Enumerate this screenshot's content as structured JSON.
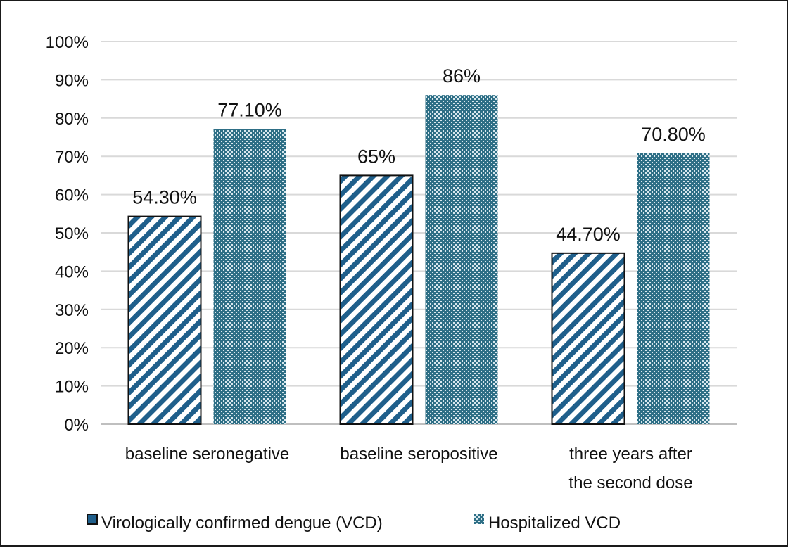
{
  "chart_data": {
    "type": "bar",
    "categories": [
      [
        "baseline seronegative"
      ],
      [
        "baseline seropositive"
      ],
      [
        "three years after",
        "the second dose"
      ]
    ],
    "series": [
      {
        "name": "Virologically confirmed dengue (VCD)",
        "values": [
          54.3,
          65,
          44.7
        ],
        "labels": [
          "54.30%",
          "65%",
          "44.70%"
        ],
        "color": "#1f5f8b",
        "pattern": "diagonal-stripes"
      },
      {
        "name": "Hospitalized VCD",
        "values": [
          77.1,
          86,
          70.8
        ],
        "labels": [
          "77.10%",
          "86%",
          "70.80%"
        ],
        "color": "#2e6f86",
        "pattern": "checker-dots"
      }
    ],
    "y_ticks": [
      "0%",
      "10%",
      "20%",
      "30%",
      "40%",
      "50%",
      "60%",
      "70%",
      "80%",
      "90%",
      "100%"
    ],
    "ylim": [
      0,
      100
    ],
    "grid": true,
    "legend_position": "bottom"
  }
}
